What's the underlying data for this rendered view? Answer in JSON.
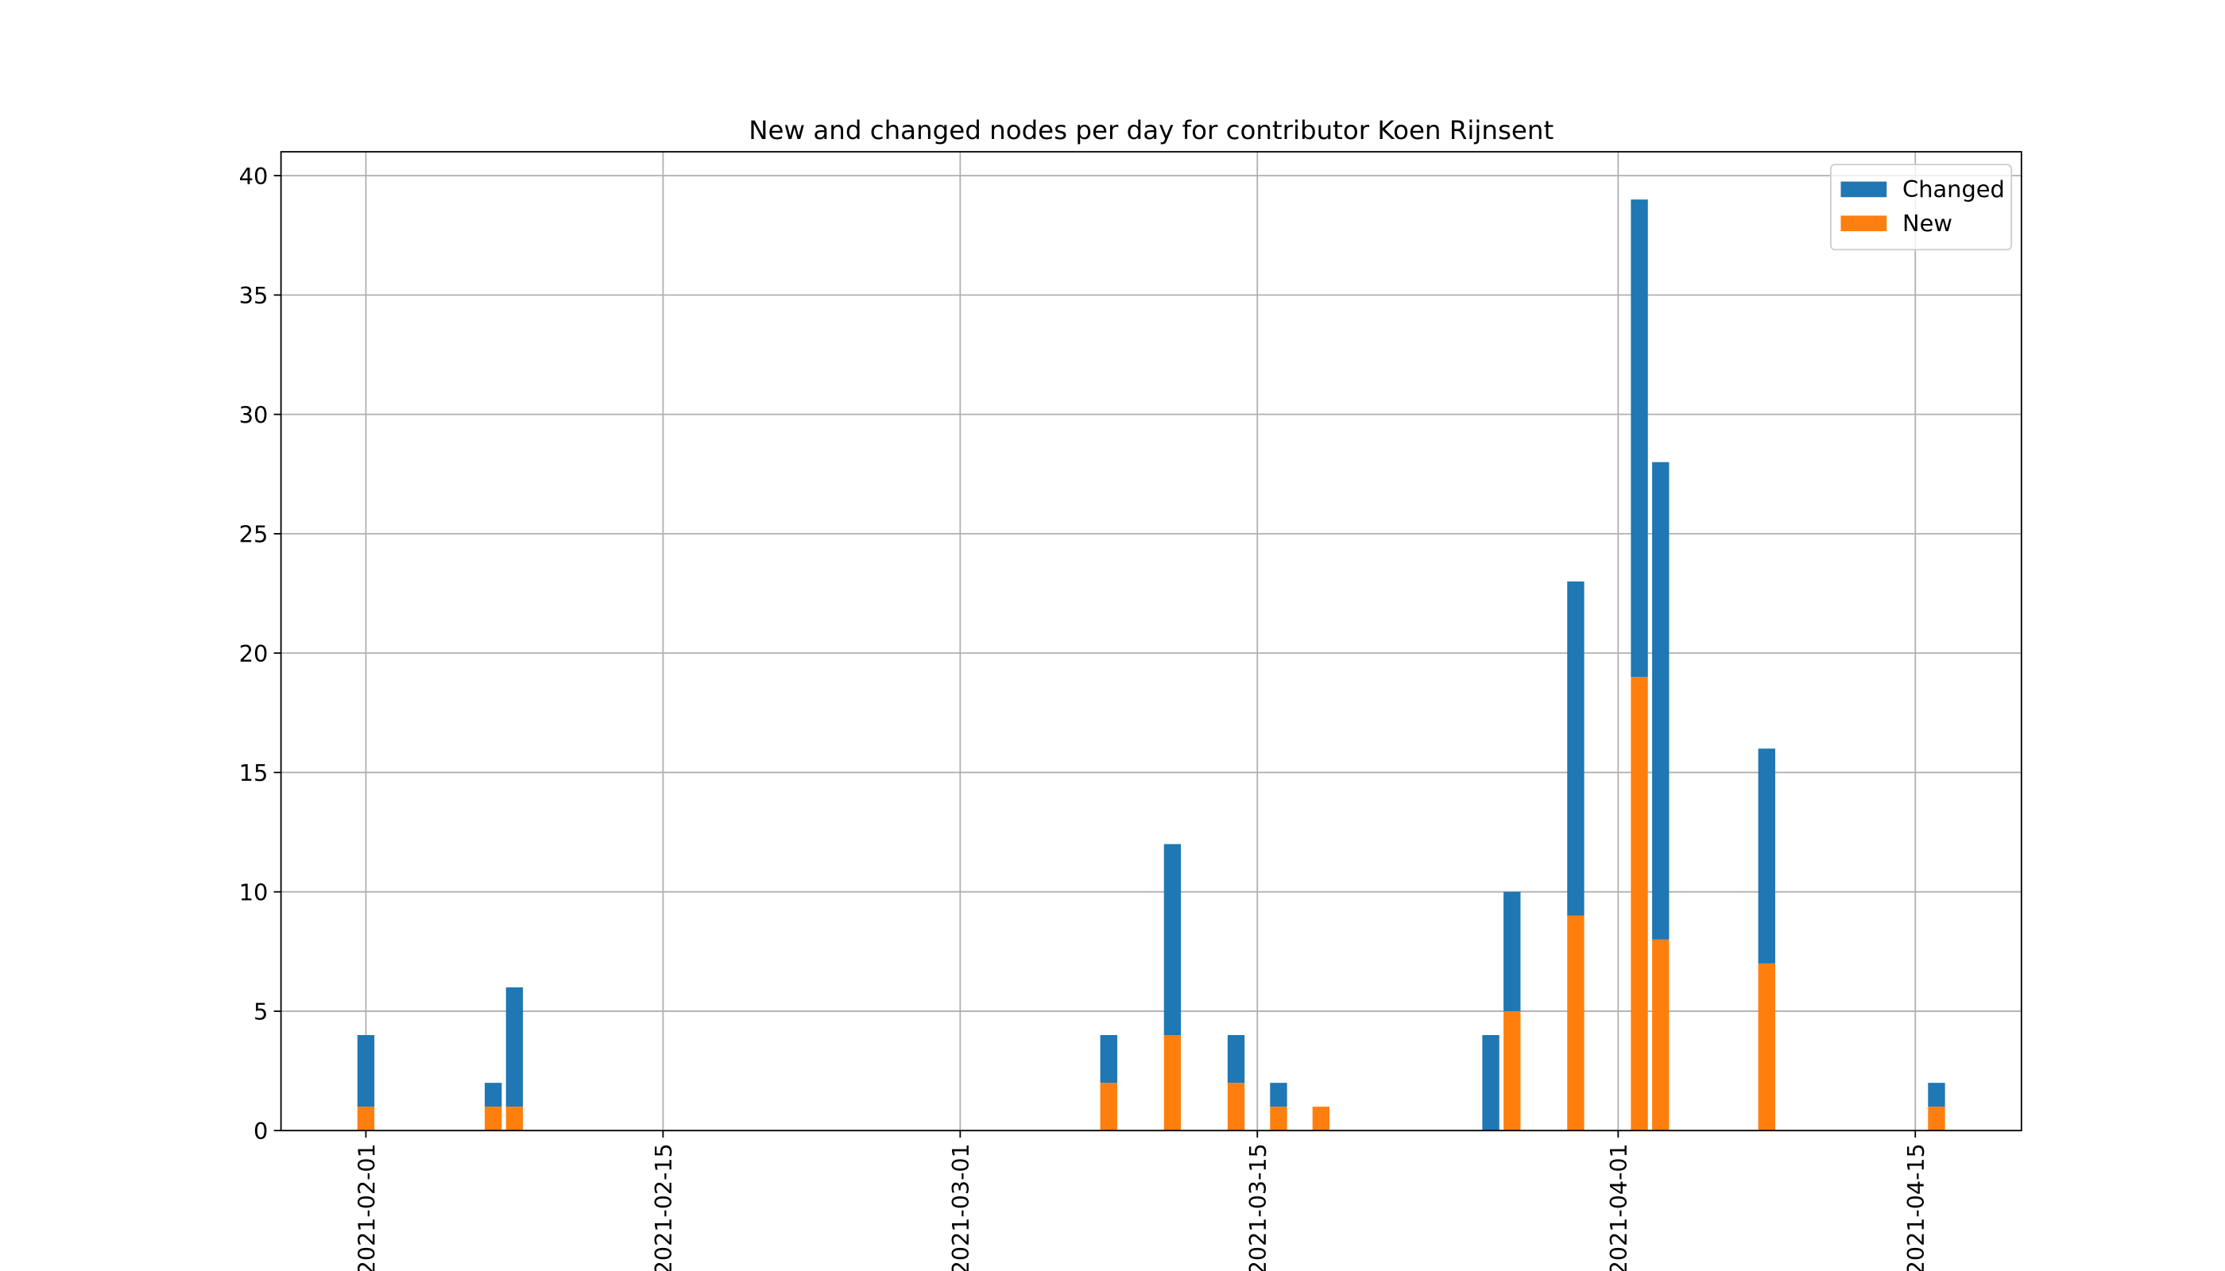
{
  "chart_data": {
    "type": "bar",
    "stacked": true,
    "title": "New and changed nodes per day for contributor Koen Rijnsent",
    "x": [
      "2021-02-01",
      "2021-02-07",
      "2021-02-08",
      "2021-03-08",
      "2021-03-11",
      "2021-03-14",
      "2021-03-16",
      "2021-03-18",
      "2021-03-26",
      "2021-03-27",
      "2021-03-30",
      "2021-04-02",
      "2021-04-03",
      "2021-04-08",
      "2021-04-16"
    ],
    "series": [
      {
        "name": "New",
        "color": "#ff7f0e",
        "values": [
          1,
          1,
          1,
          2,
          4,
          2,
          1,
          1,
          0,
          5,
          9,
          19,
          8,
          7,
          1
        ]
      },
      {
        "name": "Changed",
        "color": "#1f77b4",
        "values": [
          3,
          1,
          5,
          2,
          8,
          2,
          1,
          0,
          4,
          5,
          14,
          20,
          20,
          9,
          1
        ]
      }
    ],
    "legend_order": [
      "Changed",
      "New"
    ],
    "xlim": [
      "2021-01-28",
      "2021-04-20"
    ],
    "xticks": [
      "2021-02-01",
      "2021-02-15",
      "2021-03-01",
      "2021-03-15",
      "2021-04-01",
      "2021-04-15"
    ],
    "ylim": [
      0,
      41
    ],
    "yticks": [
      0,
      5,
      10,
      15,
      20,
      25,
      30,
      35,
      40
    ],
    "grid": true,
    "legend": "upper right"
  }
}
